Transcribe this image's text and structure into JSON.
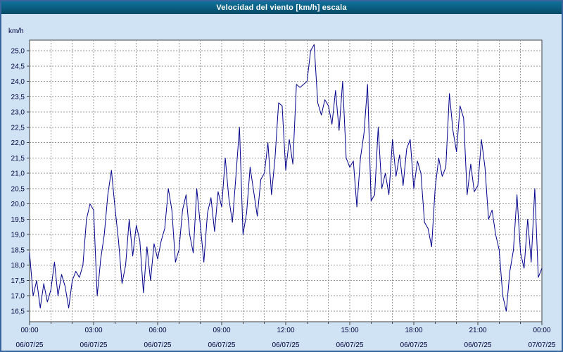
{
  "window": {
    "title": "Velocidad del viento [km/h] escala"
  },
  "colors": {
    "titlebar": "#0b6084",
    "window_bg": "#cfe3f5",
    "plot_bg": "#ffffff",
    "plot_border": "#404040",
    "grid": "#999999",
    "line": "#00008b",
    "text": "#00003c",
    "outer_border": "#38659b"
  },
  "chart_data": {
    "type": "line",
    "title": "Velocidad del viento [km/h] escala",
    "xlabel": "",
    "ylabel": "km/h",
    "unit_label": "km/h",
    "ylim": [
      16.5,
      25.0
    ],
    "y_tick_step": 0.5,
    "grid": "dashed; vertical every hour, horizontal every 0.5 km/h",
    "legend": "none",
    "y_tick_labels": [
      "25,0",
      "24,5",
      "24,0",
      "23,5",
      "23,0",
      "22,5",
      "22,0",
      "21,5",
      "21,0",
      "20,5",
      "20,0",
      "19,5",
      "19,0",
      "18,5",
      "18,0",
      "17,5",
      "17,0",
      "16,5"
    ],
    "x_ticks": [
      {
        "time": "00:00",
        "date": "06/07/25"
      },
      {
        "time": "03:00",
        "date": "06/07/25"
      },
      {
        "time": "06:00",
        "date": "06/07/25"
      },
      {
        "time": "09:00",
        "date": "06/07/25"
      },
      {
        "time": "12:00",
        "date": "06/07/25"
      },
      {
        "time": "15:00",
        "date": "06/07/25"
      },
      {
        "time": "18:00",
        "date": "06/07/25"
      },
      {
        "time": "21:00",
        "date": "06/07/25"
      },
      {
        "time": "00:00",
        "date": "07/07/25"
      }
    ],
    "x_range_minutes": [
      0,
      1440
    ],
    "sample_interval_minutes": 10,
    "values": [
      18.4,
      17.0,
      17.5,
      16.6,
      17.4,
      16.8,
      17.2,
      18.1,
      17.0,
      17.7,
      17.3,
      16.6,
      17.5,
      17.8,
      17.6,
      18.0,
      19.5,
      20.0,
      19.8,
      17.0,
      18.2,
      19.0,
      20.3,
      21.1,
      19.9,
      18.8,
      17.4,
      18.0,
      19.5,
      18.3,
      19.3,
      18.8,
      17.1,
      18.6,
      17.5,
      18.7,
      18.2,
      18.8,
      19.2,
      20.5,
      19.8,
      18.1,
      18.5,
      19.8,
      20.3,
      19.0,
      18.4,
      20.5,
      19.3,
      18.1,
      19.7,
      20.2,
      19.1,
      20.4,
      19.9,
      21.5,
      20.2,
      19.4,
      20.9,
      22.5,
      19.0,
      19.7,
      21.2,
      20.4,
      19.6,
      20.8,
      21.0,
      22.0,
      20.3,
      21.5,
      23.3,
      23.2,
      21.1,
      22.1,
      21.3,
      23.9,
      23.8,
      23.9,
      24.0,
      25.0,
      25.2,
      23.3,
      22.9,
      23.4,
      23.2,
      22.6,
      23.7,
      22.4,
      24.0,
      21.5,
      21.2,
      21.4,
      19.9,
      21.5,
      22.3,
      23.9,
      20.1,
      20.3,
      22.5,
      20.5,
      21.0,
      20.3,
      22.1,
      20.9,
      21.6,
      20.6,
      21.8,
      22.1,
      20.5,
      21.4,
      21.0,
      19.4,
      19.2,
      18.6,
      20.5,
      21.5,
      20.9,
      21.2,
      23.6,
      22.4,
      21.7,
      23.2,
      22.8,
      20.3,
      21.3,
      20.4,
      20.6,
      22.1,
      21.2,
      19.5,
      19.8,
      19.0,
      18.5,
      17.0,
      16.5,
      17.8,
      18.5,
      20.3,
      18.4,
      17.9,
      19.5,
      18.1,
      20.5,
      17.6,
      17.9
    ]
  }
}
